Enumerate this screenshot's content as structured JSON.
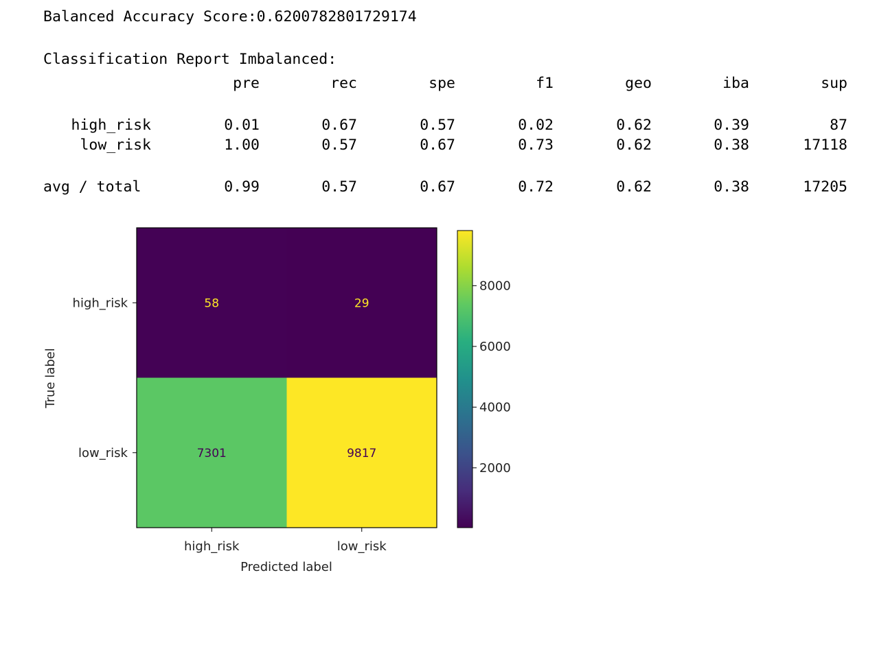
{
  "balanced_accuracy": {
    "label": "Balanced Accuracy Score:",
    "value": "0.6200782801729174"
  },
  "report": {
    "title": "Classification Report Imbalanced:",
    "columns": [
      "pre",
      "rec",
      "spe",
      "f1",
      "geo",
      "iba",
      "sup"
    ],
    "rows": [
      {
        "label": "high_risk",
        "values": [
          "0.01",
          "0.67",
          "0.57",
          "0.02",
          "0.62",
          "0.39",
          "87"
        ]
      },
      {
        "label": "low_risk",
        "values": [
          "1.00",
          "0.57",
          "0.67",
          "0.73",
          "0.62",
          "0.38",
          "17118"
        ]
      }
    ],
    "total": {
      "label": "avg / total",
      "values": [
        "0.99",
        "0.57",
        "0.67",
        "0.72",
        "0.62",
        "0.38",
        "17205"
      ]
    }
  },
  "chart_data": {
    "type": "heatmap",
    "title": "",
    "xlabel": "Predicted label",
    "ylabel": "True label",
    "x_categories": [
      "high_risk",
      "low_risk"
    ],
    "y_categories": [
      "high_risk",
      "low_risk"
    ],
    "values": [
      [
        58,
        29
      ],
      [
        7301,
        9817
      ]
    ],
    "colormap": "viridis",
    "colorbar": {
      "min": 29,
      "max": 9817,
      "ticks": [
        2000,
        4000,
        6000,
        8000
      ]
    },
    "text_colors": {
      "dark_cell": "#fde725",
      "light_cell": "#440154"
    }
  }
}
